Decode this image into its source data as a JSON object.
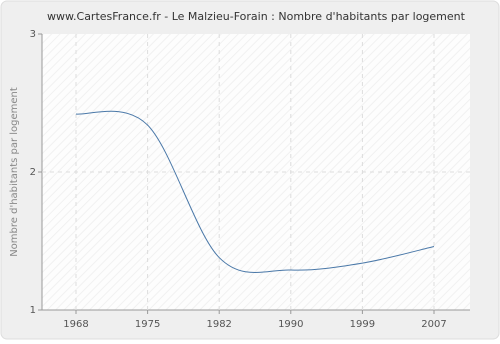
{
  "chart_data": {
    "type": "line",
    "title": "www.CartesFrance.fr - Le Malzieu-Forain : Nombre d'habitants par logement",
    "y_label": "Nombre d'habitants par logement",
    "categories": [
      "1968",
      "1975",
      "1982",
      "1990",
      "1999",
      "2007"
    ],
    "series": [
      {
        "name": "Nombre d'habitants par logement",
        "color": "#4a78a8",
        "values": [
          2.42,
          2.34,
          1.38,
          1.29,
          1.34,
          1.46
        ]
      }
    ],
    "ylim": [
      1,
      3
    ],
    "yticks": [
      1,
      2,
      3
    ],
    "grid": true
  }
}
